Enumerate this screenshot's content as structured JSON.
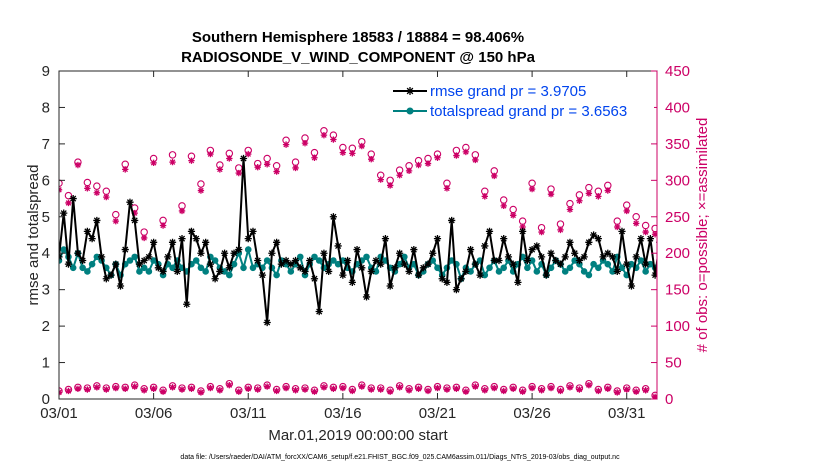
{
  "chart_data": {
    "type": "line",
    "title": "Southern Hemisphere 18583 / 18884 = 98.406%",
    "subtitle": "RADIOSONDE_V_WIND_COMPONENT @ 150 hPa",
    "xlabel": "Mar.01,2019 00:00:00 start",
    "ylabel": "rmse and totalspread",
    "ylabel_right": "# of obs: o=possible; ×=assimilated",
    "footer": "data file: /Users/raeder/DAI/ATM_forcXX/CAM6_setup/f.e21.FHIST_BGC.f09_025.CAM6assim.011/Diags_NTrS_2019-03/obs_diag_output.nc",
    "xlim": [
      0,
      31.6
    ],
    "ylim": [
      0,
      9
    ],
    "ylim_right": [
      0,
      450
    ],
    "x_ticks": [
      0,
      5,
      10,
      15,
      20,
      25,
      30
    ],
    "x_tick_labels": [
      "03/01",
      "03/06",
      "03/11",
      "03/16",
      "03/21",
      "03/26",
      "03/31"
    ],
    "y_ticks": [
      0,
      1,
      2,
      3,
      4,
      5,
      6,
      7,
      8,
      9
    ],
    "y_tick_labels": [
      "0",
      "1",
      "2",
      "3",
      "4",
      "5",
      "6",
      "7",
      "8",
      "9"
    ],
    "y_ticks_right": [
      0,
      50,
      100,
      150,
      200,
      250,
      300,
      350,
      400,
      450
    ],
    "y_tick_labels_right": [
      "0",
      "50",
      "100",
      "150",
      "200",
      "250",
      "300",
      "350",
      "400",
      "450"
    ],
    "x_step": 0.25,
    "series": [
      {
        "name": "rmse grand pr = 3.9705",
        "color": "#000000",
        "marker": "asterisk",
        "values": [
          3.9,
          5.1,
          3.7,
          5.5,
          4.0,
          3.8,
          4.6,
          4.4,
          4.9,
          3.9,
          3.3,
          3.4,
          3.7,
          3.1,
          4.1,
          5.4,
          4.9,
          3.7,
          3.8,
          3.9,
          4.3,
          3.6,
          3.5,
          3.9,
          4.3,
          3.5,
          4.4,
          2.6,
          4.6,
          4.4,
          4.0,
          4.3,
          3.7,
          3.3,
          3.5,
          4.0,
          3.6,
          4.0,
          4.1,
          6.6,
          4.4,
          4.6,
          3.8,
          3.4,
          2.1,
          4.0,
          4.3,
          3.7,
          3.8,
          3.7,
          3.8,
          3.6,
          3.5,
          3.8,
          3.3,
          2.4,
          4.0,
          3.5,
          5.0,
          4.2,
          3.4,
          3.8,
          3.2,
          4.1,
          3.6,
          2.8,
          3.5,
          3.8,
          3.7,
          4.4,
          3.1,
          3.6,
          4.0,
          3.7,
          3.5,
          4.1,
          3.4,
          3.6,
          3.7,
          4.0,
          4.4,
          3.3,
          3.2,
          4.9,
          3.0,
          3.3,
          3.5,
          4.1,
          3.7,
          3.4,
          4.2,
          4.6,
          3.8,
          3.8,
          4.4,
          3.9,
          3.7,
          3.2,
          4.6,
          3.8,
          4.1,
          4.2,
          3.9,
          3.4,
          4.0,
          3.8,
          3.7,
          3.9,
          4.3,
          4.0,
          3.8,
          3.9,
          4.3,
          4.5,
          4.4,
          3.9,
          4.0,
          3.9,
          3.5,
          4.6,
          3.7,
          3.1,
          3.9,
          4.4,
          3.7,
          4.4,
          3.4,
          4.3,
          4.2,
          4.0,
          4.1,
          3.9,
          3.5,
          3.9,
          4.4,
          3.9,
          3.6,
          3.9,
          4.2,
          4.2,
          4.0,
          4.1,
          3.9,
          4.0,
          4.3,
          3.9,
          3.9,
          4.3,
          3.8,
          3.4,
          3.6,
          4.0,
          4.6,
          3.9,
          4.0,
          4.1,
          4.1,
          5.9,
          3.8,
          3.9,
          4.0,
          4.7,
          4.4,
          3.9,
          5.3,
          3.4,
          3.9,
          4.2,
          3.8,
          6.9,
          3.8,
          4.1,
          4.4,
          3.9,
          4.6,
          4.0,
          3.9,
          4.1,
          3.4,
          4.5,
          3.9,
          4.1,
          4.0,
          3.8,
          4.1,
          4.6,
          4.9,
          4.3,
          3.9,
          5.3,
          3.8,
          4.2,
          4.1,
          3.9,
          4.1,
          3.9,
          4.0,
          4.4,
          3.5,
          5.6,
          3.8,
          4.6,
          5.3,
          4.2,
          4.0,
          4.0,
          4.7,
          4.6,
          3.9,
          5.3,
          3.6,
          4.1,
          4.6,
          4.1,
          4.3,
          2.0,
          4.2,
          4.6,
          4.2,
          4.5,
          3.9,
          4.1,
          4.8,
          5.5,
          4.6,
          4.9,
          5.0,
          4.9,
          4.9
        ]
      },
      {
        "name": "totalspread grand pr = 3.6563",
        "color": "#008080",
        "marker": "dot",
        "values": [
          3.8,
          4.1,
          3.9,
          3.6,
          4.0,
          3.6,
          3.5,
          3.7,
          3.9,
          3.8,
          3.6,
          3.4,
          3.7,
          3.4,
          3.7,
          3.8,
          3.9,
          3.5,
          3.6,
          3.5,
          3.8,
          3.7,
          3.4,
          3.7,
          3.6,
          3.8,
          3.6,
          3.5,
          3.7,
          3.8,
          3.6,
          3.5,
          3.9,
          3.8,
          3.6,
          3.5,
          3.4,
          3.7,
          4.0,
          3.6,
          4.1,
          3.6,
          3.7,
          3.6,
          3.8,
          3.6,
          3.4,
          3.8,
          3.7,
          3.5,
          3.7,
          3.9,
          3.4,
          3.7,
          3.9,
          3.8,
          3.6,
          3.7,
          3.8,
          3.7,
          3.8,
          3.6,
          3.5,
          3.7,
          3.8,
          3.9,
          3.6,
          3.5,
          3.9,
          3.8,
          3.6,
          3.5,
          3.7,
          3.9,
          3.6,
          3.7,
          3.4,
          3.5,
          3.7,
          3.8,
          3.6,
          3.4,
          3.6,
          3.8,
          3.7,
          3.3,
          3.6,
          3.5,
          3.7,
          3.8,
          3.4,
          3.6,
          3.8,
          3.5,
          3.6,
          3.8,
          3.5,
          3.7,
          3.9,
          3.6,
          3.8,
          3.5,
          3.7,
          3.4,
          3.6,
          3.8,
          3.7,
          3.5,
          3.6,
          3.8,
          3.7,
          3.5,
          3.4,
          3.7,
          3.6,
          3.8,
          3.7,
          3.5,
          3.9,
          3.6,
          3.4,
          3.7,
          3.6,
          3.8,
          3.5,
          3.7,
          3.6,
          3.5,
          3.8,
          3.7,
          3.6,
          3.9,
          3.7,
          3.5,
          3.8,
          3.6,
          3.7,
          3.5,
          3.8,
          3.7,
          3.6,
          3.8,
          3.5,
          3.7,
          3.9,
          3.6,
          3.7,
          3.8,
          3.5,
          3.7,
          3.6,
          3.9,
          3.7,
          3.5,
          3.8,
          3.6,
          3.7,
          3.4,
          3.8,
          3.6,
          3.7,
          3.9,
          3.5,
          3.7,
          3.6,
          3.8,
          3.7,
          3.5,
          3.6,
          3.8,
          3.7,
          3.9,
          3.6,
          3.7,
          3.5,
          3.8,
          3.6,
          3.7,
          3.8,
          3.5,
          3.6,
          3.8,
          3.7,
          3.5,
          3.9,
          3.7,
          3.6,
          3.8,
          3.5,
          3.7,
          3.6,
          3.8,
          3.5,
          3.7,
          3.9,
          3.6,
          3.5,
          3.8,
          3.6,
          3.7,
          3.5,
          3.7,
          3.8,
          3.6,
          3.4,
          3.7,
          3.5,
          3.6,
          3.8,
          3.7,
          3.5,
          3.6,
          3.8,
          3.7,
          3.5,
          3.9,
          3.6,
          3.7,
          3.5,
          3.8,
          3.6,
          3.5,
          3.7,
          4.0,
          3.6,
          3.5,
          3.9,
          3.6,
          3.5
        ]
      }
    ],
    "obs_possible": {
      "name": "possible",
      "color": "#cc0066",
      "marker": "circle",
      "axis": "right",
      "x": [
        0.0,
        0.5,
        1.0,
        1.5,
        2.0,
        2.5,
        3.0,
        3.5,
        4.0,
        4.5,
        5.0,
        5.5,
        6.0,
        6.5,
        7.0,
        7.5,
        8.0,
        8.5,
        9.0,
        9.5,
        10.0,
        10.5,
        11.0,
        11.5,
        12.0,
        12.5,
        13.0,
        13.5,
        14.0,
        14.5,
        15.0,
        15.5,
        16.0,
        16.5,
        17.0,
        17.5,
        18.0,
        18.5,
        19.0,
        19.5,
        20.0,
        20.5,
        21.0,
        21.5,
        22.0,
        22.5,
        23.0,
        23.5,
        24.0,
        24.5,
        25.0,
        25.5,
        26.0,
        26.5,
        27.0,
        27.5,
        28.0,
        28.5,
        29.0,
        29.5,
        30.0,
        30.5,
        31.0,
        31.5
      ],
      "values": [
        296,
        279,
        325,
        297,
        292,
        285,
        253,
        322,
        262,
        229,
        330,
        245,
        335,
        265,
        333,
        295,
        341,
        321,
        337,
        317,
        341,
        323,
        330,
        320,
        355,
        325,
        358,
        338,
        368,
        362,
        345,
        344,
        353,
        336,
        307,
        300,
        314,
        320,
        327,
        330,
        336,
        296,
        341,
        345,
        335,
        285,
        313,
        273,
        260,
        244,
        296,
        235,
        288,
        240,
        268,
        280,
        290,
        285,
        293,
        244,
        266,
        250,
        238,
        234
      ]
    },
    "obs_assimilated": {
      "name": "assimilated",
      "color": "#cc0066",
      "marker": "asterisk",
      "axis": "right",
      "values": [
        287,
        269,
        321,
        289,
        283,
        277,
        244,
        315,
        255,
        221,
        324,
        238,
        325,
        258,
        327,
        286,
        336,
        315,
        330,
        310,
        336,
        318,
        322,
        312,
        349,
        317,
        351,
        331,
        362,
        356,
        338,
        337,
        347,
        329,
        301,
        293,
        307,
        313,
        321,
        323,
        331,
        289,
        334,
        339,
        328,
        278,
        306,
        265,
        252,
        236,
        288,
        229,
        281,
        232,
        260,
        272,
        282,
        278,
        286,
        236,
        258,
        241,
        229,
        226
      ]
    },
    "obs_low_possible": {
      "name": "possible (low)",
      "x": [
        0.0,
        0.5,
        1.0,
        1.5,
        2.0,
        2.5,
        3.0,
        3.5,
        4.0,
        4.5,
        5.0,
        5.5,
        6.0,
        6.5,
        7.0,
        7.5,
        8.0,
        8.5,
        9.0,
        9.5,
        10.0,
        10.5,
        11.0,
        11.5,
        12.0,
        12.5,
        13.0,
        13.5,
        14.0,
        14.5,
        15.0,
        15.5,
        16.0,
        16.5,
        17.0,
        17.5,
        18.0,
        18.5,
        19.0,
        19.5,
        20.0,
        20.5,
        21.0,
        21.5,
        22.0,
        22.5,
        23.0,
        23.5,
        24.0,
        24.5,
        25.0,
        25.5,
        26.0,
        26.5,
        27.0,
        27.5,
        28.0,
        28.5,
        29.0,
        29.5,
        30.0,
        30.5,
        31.0,
        31.5
      ],
      "values": [
        11,
        13,
        16,
        15,
        18,
        15,
        17,
        16,
        19,
        14,
        16,
        12,
        18,
        15,
        16,
        11,
        17,
        14,
        21,
        12,
        16,
        15,
        19,
        13,
        17,
        14,
        15,
        12,
        18,
        16,
        17,
        13,
        19,
        15,
        15,
        12,
        18,
        14,
        16,
        13,
        17,
        15,
        16,
        12,
        19,
        14,
        17,
        13,
        16,
        12,
        17,
        14,
        17,
        13,
        18,
        15,
        21,
        13,
        16,
        11,
        15,
        12,
        14,
        5
      ]
    },
    "obs_low_assimilated": {
      "name": "assimilated (low)",
      "values": [
        9,
        11,
        14,
        13,
        16,
        13,
        15,
        14,
        17,
        12,
        14,
        10,
        16,
        13,
        14,
        9,
        15,
        12,
        19,
        10,
        14,
        13,
        17,
        11,
        15,
        12,
        13,
        10,
        16,
        14,
        15,
        11,
        17,
        13,
        13,
        10,
        16,
        12,
        14,
        11,
        15,
        13,
        14,
        10,
        17,
        12,
        15,
        11,
        14,
        10,
        15,
        12,
        15,
        11,
        16,
        13,
        19,
        11,
        14,
        9,
        13,
        10,
        12,
        3
      ]
    }
  }
}
